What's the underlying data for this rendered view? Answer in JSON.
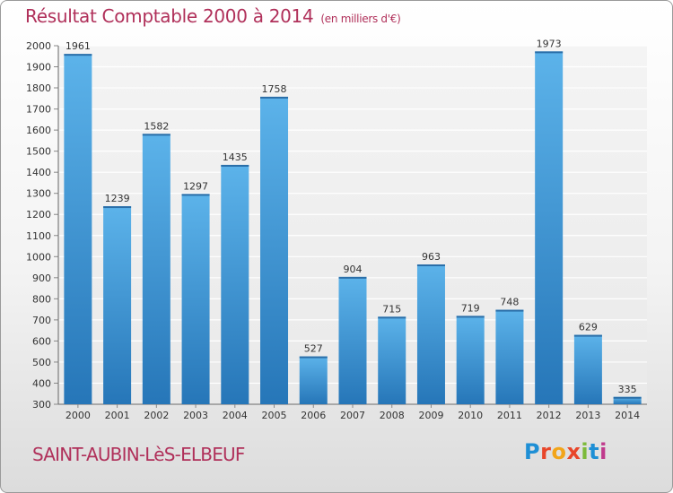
{
  "title": "Résultat Comptable 2000 à 2014",
  "subtitle": "(en milliers d'€)",
  "place": "SAINT-AUBIN-LèS-ELBEUF",
  "logo_letters": [
    "P",
    "r",
    "o",
    "x",
    "i",
    "t",
    "i"
  ],
  "colors": {
    "title": "#b0305a",
    "bar_light": "#5cb3ea",
    "bar_dark": "#2676b8",
    "grid": "#ffffff",
    "plot_bg": "#e9e9e9"
  },
  "chart_data": {
    "type": "bar",
    "title": "Résultat Comptable 2000 à 2014",
    "subtitle": "(en milliers d'€)",
    "categories": [
      "2000",
      "2001",
      "2002",
      "2003",
      "2004",
      "2005",
      "2006",
      "2007",
      "2008",
      "2009",
      "2010",
      "2011",
      "2012",
      "2013",
      "2014"
    ],
    "values": [
      1961,
      1239,
      1582,
      1297,
      1435,
      1758,
      527,
      904,
      715,
      963,
      719,
      748,
      1973,
      629,
      335
    ],
    "ylim": [
      300,
      2000
    ],
    "yticks": [
      300,
      400,
      500,
      600,
      700,
      800,
      900,
      1000,
      1100,
      1200,
      1300,
      1400,
      1500,
      1600,
      1700,
      1800,
      1900,
      2000
    ],
    "grid": true,
    "data_labels": true
  }
}
